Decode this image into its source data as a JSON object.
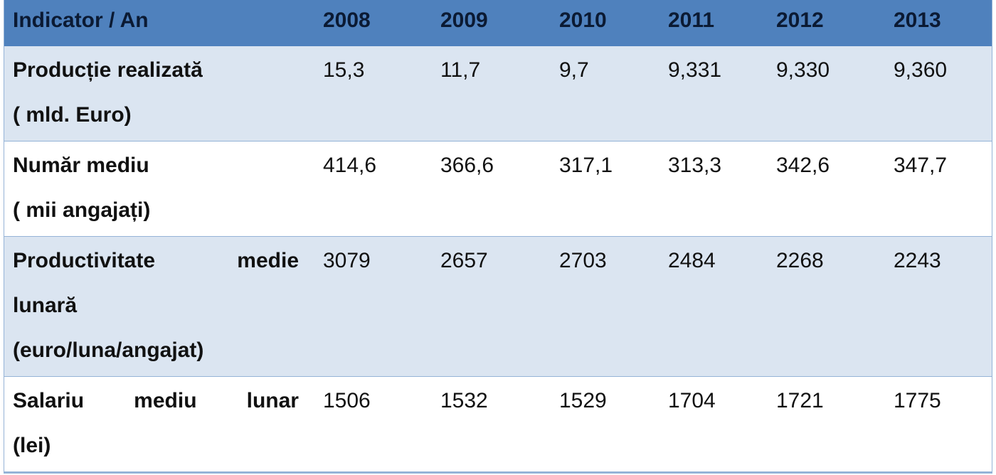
{
  "table": {
    "header": [
      "Indicator / An",
      "2008",
      "2009",
      "2010",
      "2011",
      "2012",
      "2013"
    ],
    "rows": [
      {
        "label": [
          "Producție realizată",
          "( mld. Euro)"
        ],
        "values": [
          "15,3",
          "11,7",
          "9,7",
          "9,331",
          "9,330",
          "9,360"
        ]
      },
      {
        "label": [
          "Număr mediu",
          "( mii angajați)"
        ],
        "values": [
          "414,6",
          "366,6",
          "317,1",
          "313,3",
          "342,6",
          "347,7"
        ]
      },
      {
        "label": [
          "Productivitate medie",
          "lunară",
          "(euro/luna/angajat)"
        ],
        "values": [
          "3079",
          "2657",
          "2703",
          "2484",
          "2268",
          "2243"
        ]
      },
      {
        "label": [
          "Salariu mediu lunar",
          "(lei)"
        ],
        "values": [
          "1506",
          "1532",
          "1529",
          "1704",
          "1721",
          "1775"
        ]
      }
    ]
  }
}
